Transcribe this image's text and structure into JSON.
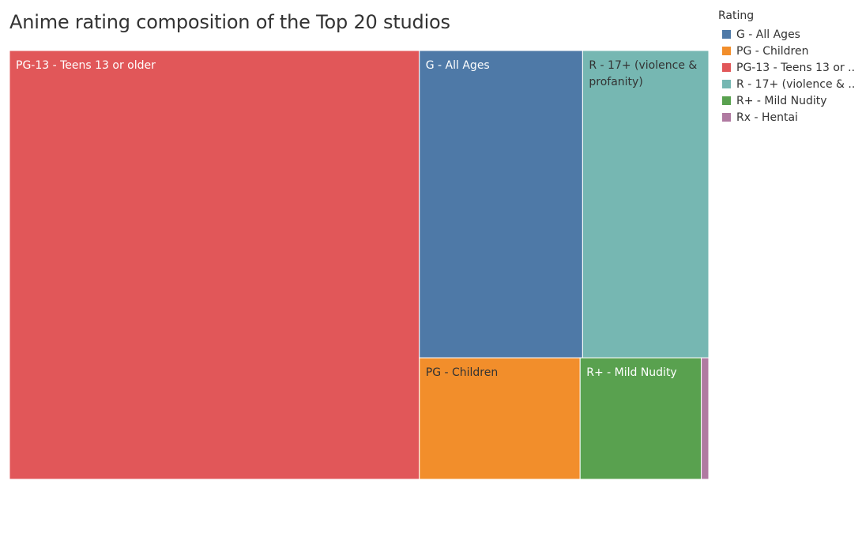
{
  "title": "Anime rating composition of the Top 20 studios",
  "legend": {
    "title": "Rating",
    "items": [
      {
        "label": "G - All Ages",
        "color": "#4e79a7"
      },
      {
        "label": "PG - Children",
        "color": "#f28e2b"
      },
      {
        "label": "PG-13 - Teens 13 or ..",
        "color": "#e15759"
      },
      {
        "label": "R - 17+ (violence & ..",
        "color": "#76b7b2"
      },
      {
        "label": "R+ - Mild Nudity",
        "color": "#59a14f"
      },
      {
        "label": "Rx - Hentai",
        "color": "#b07aa1"
      }
    ]
  },
  "chart_data": {
    "type": "treemap",
    "title": "Anime rating composition of the Top 20 studios",
    "legend_title": "Rating",
    "legend_position": "right",
    "labels": {
      "pg13": "PG-13 - Teens 13 or older",
      "g": "G - All Ages",
      "r17_line1": "R - 17+ (violence &",
      "r17_line2": "profanity)",
      "pg": "PG - Children",
      "rplus": "R+ - Mild Nudity"
    },
    "series": [
      {
        "name": "PG-13 - Teens 13 or older",
        "value": 58.5,
        "color": "#e15759"
      },
      {
        "name": "G - All Ages",
        "value": 16.7,
        "color": "#4e79a7"
      },
      {
        "name": "R - 17+ (violence & profanity)",
        "value": 12.9,
        "color": "#76b7b2"
      },
      {
        "name": "PG - Children",
        "value": 6.5,
        "color": "#f28e2b"
      },
      {
        "name": "R+ - Mild Nudity",
        "value": 4.9,
        "color": "#59a14f"
      },
      {
        "name": "Rx - Hentai",
        "value": 0.3,
        "color": "#b07aa1"
      }
    ]
  }
}
